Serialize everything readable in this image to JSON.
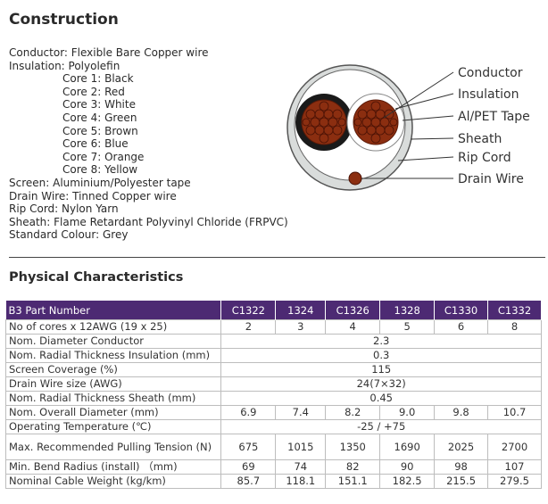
{
  "construction": {
    "title": "Construction",
    "lines": [
      "Conductor: Flexible Bare Copper wire",
      "Insulation: Polyolefin"
    ],
    "cores": [
      "Core 1: Black",
      "Core 2: Red",
      "Core 3: White",
      "Core 4: Green",
      "Core 5: Brown",
      "Core 6: Blue",
      "Core 7: Orange",
      "Core 8: Yellow"
    ],
    "lines_after": [
      "Screen: Aluminium/Polyester tape",
      "Drain Wire: Tinned Copper wire",
      "Rip Cord: Nylon Yarn",
      "Sheath: Flame Retardant Polyvinyl Chloride (FRPVC)",
      "Standard Colour: Grey"
    ],
    "diagram_labels": [
      "Conductor",
      "Insulation",
      "Al/PET Tape",
      "Sheath",
      "Rip Cord",
      "Drain Wire"
    ]
  },
  "physical": {
    "title": "Physical Characteristics",
    "header": [
      "B3 Part Number",
      "C1322",
      "1324",
      "C1326",
      "1328",
      "C1330",
      "C1332"
    ],
    "rows": [
      {
        "label": "No of cores x 12AWG (19 x 25)",
        "values": [
          "2",
          "3",
          "4",
          "5",
          "6",
          "8"
        ]
      },
      {
        "label": "Nom. Diameter Conductor",
        "span": "2.3"
      },
      {
        "label": "Nom. Radial Thickness Insulation (mm)",
        "span": "0.3"
      },
      {
        "label": "Screen Coverage (%)",
        "span": "115"
      },
      {
        "label": "Drain Wire size (AWG)",
        "span": "24(7×32)"
      },
      {
        "label": "Nom. Radial Thickness Sheath (mm)",
        "span": "0.45"
      },
      {
        "label": "Nom. Overall Diameter (mm)",
        "values": [
          "6.9",
          "7.4",
          "8.2",
          "9.0",
          "9.8",
          "10.7"
        ]
      },
      {
        "label": "Operating Temperature (℃)",
        "span": "-25 / +75"
      },
      {
        "label": "Max. Recommended Pulling Tension (N)",
        "values": [
          "675",
          "1015",
          "1350",
          "1690",
          "2025",
          "2700"
        ],
        "tall": true
      },
      {
        "label": "Min. Bend Radius (install) （mm)",
        "values": [
          "69",
          "74",
          "82",
          "90",
          "98",
          "107"
        ]
      },
      {
        "label": "Nominal Cable Weight (kg/km)",
        "values": [
          "85.7",
          "118.1",
          "151.1",
          "182.5",
          "215.5",
          "279.5"
        ]
      }
    ]
  },
  "colors": {
    "header_bg": "#4d2a73",
    "copper": "#8b2e10",
    "sheath": "#d9dcdb"
  }
}
